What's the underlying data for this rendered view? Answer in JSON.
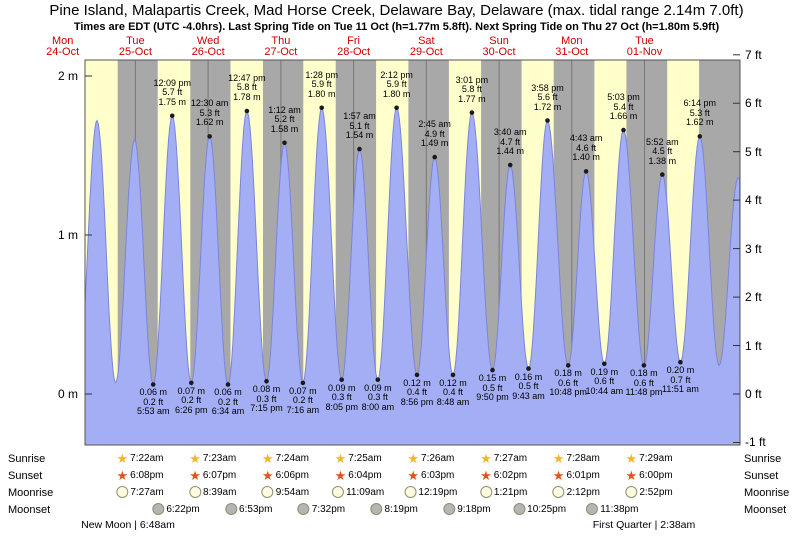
{
  "title": "Pine Island, Malapartis Creek, Mad Horse Creek, Delaware Bay, Delaware (max. tidal range 2.14m 7.0ft)",
  "subtitle": "Times are EDT (UTC -4.0hrs). Last Spring Tide on Tue 11 Oct (h=1.77m 5.8ft). Next Spring Tide on Thu 27 Oct (h=1.80m 5.9ft)",
  "days": [
    {
      "dow": "Mon",
      "date": "24-Oct"
    },
    {
      "dow": "Tue",
      "date": "25-Oct"
    },
    {
      "dow": "Wed",
      "date": "26-Oct"
    },
    {
      "dow": "Thu",
      "date": "27-Oct"
    },
    {
      "dow": "Fri",
      "date": "28-Oct"
    },
    {
      "dow": "Sat",
      "date": "29-Oct"
    },
    {
      "dow": "Sun",
      "date": "30-Oct"
    },
    {
      "dow": "Mon",
      "date": "31-Oct"
    },
    {
      "dow": "Tue",
      "date": "01-Nov"
    }
  ],
  "colors": {
    "curve_fill": "#a4aef4",
    "curve_stroke": "#7b85da",
    "daylight_band": "#ffffcc",
    "night_bg": "#a8a8a8",
    "day_label": "#cc0000",
    "sunrise_icon": "#f2b52c",
    "sunset_icon": "#e0541c",
    "moonrise_icon": "#fffbe0",
    "moonset_icon": "#b5b5b5"
  },
  "chart_data": {
    "type": "area",
    "title": "Tide height over time",
    "x_axis_note": "9 days, Mon 24-Oct through Tue 01-Nov; t = hours from Mon 24-Oct 00:00",
    "ylabel_left": "m",
    "ylabel_right": "ft",
    "ylim_m": [
      -0.32,
      2.1
    ],
    "y_ticks_left": [
      {
        "m": 2,
        "label": "2 m"
      },
      {
        "m": 1,
        "label": "1 m"
      },
      {
        "m": 0,
        "label": "0 m"
      }
    ],
    "y_ticks_right": [
      {
        "ft": 7,
        "label": "7 ft"
      },
      {
        "ft": 6,
        "label": "6 ft"
      },
      {
        "ft": 5,
        "label": "5 ft"
      },
      {
        "ft": 4,
        "label": "4 ft"
      },
      {
        "ft": 3,
        "label": "3 ft"
      },
      {
        "ft": 2,
        "label": "2 ft"
      },
      {
        "ft": 1,
        "label": "1 ft"
      },
      {
        "ft": 0,
        "label": "0 ft"
      },
      {
        "ft": -1,
        "label": "-1 ft"
      }
    ],
    "daylight_bands_hours": [
      [
        7.37,
        18.15
      ],
      [
        31.37,
        42.13
      ],
      [
        55.38,
        66.12
      ],
      [
        79.4,
        90.1
      ],
      [
        103.42,
        114.07
      ],
      [
        127.43,
        138.05
      ],
      [
        151.45,
        162.03
      ],
      [
        175.47,
        186.02
      ],
      [
        199.48,
        210.0
      ]
    ],
    "extremes": [
      {
        "t": 5.07,
        "m": 0.06,
        "type": "low",
        "annotated": false
      },
      {
        "t": 11.32,
        "m": 1.72,
        "type": "high",
        "annotated": false
      },
      {
        "t": 17.47,
        "m": 0.07,
        "type": "low",
        "annotated": false
      },
      {
        "t": 23.73,
        "m": 1.6,
        "type": "high",
        "annotated": false
      },
      {
        "t": 29.88,
        "m": 0.06,
        "m_label": "0.06 m",
        "ft": "0.2 ft",
        "time": "5:53 am",
        "type": "low",
        "annotated": true
      },
      {
        "t": 36.15,
        "m": 1.75,
        "m_label": "1.75 m",
        "ft": "5.7 ft",
        "time": "12:09 pm",
        "type": "high",
        "annotated": true
      },
      {
        "t": 42.43,
        "m": 0.07,
        "m_label": "0.07 m",
        "ft": "0.2 ft",
        "time": "6:26 pm",
        "type": "low",
        "annotated": true
      },
      {
        "t": 48.5,
        "m": 1.62,
        "m_label": "1.62 m",
        "ft": "5.3 ft",
        "time": "12:30 am",
        "type": "high",
        "annotated": true
      },
      {
        "t": 54.57,
        "m": 0.06,
        "m_label": "0.06 m",
        "ft": "0.2 ft",
        "time": "6:34 am",
        "type": "low",
        "annotated": true
      },
      {
        "t": 60.78,
        "m": 1.78,
        "m_label": "1.78 m",
        "ft": "5.8 ft",
        "time": "12:47 pm",
        "type": "high",
        "annotated": true
      },
      {
        "t": 67.25,
        "m": 0.08,
        "m_label": "0.08 m",
        "ft": "0.3 ft",
        "time": "7:15 pm",
        "type": "low",
        "annotated": true
      },
      {
        "t": 73.2,
        "m": 1.58,
        "m_label": "1.58 m",
        "ft": "5.2 ft",
        "time": "1:12 am",
        "type": "high",
        "annotated": true
      },
      {
        "t": 79.27,
        "m": 0.07,
        "m_label": "0.07 m",
        "ft": "0.2 ft",
        "time": "7:16 am",
        "type": "low",
        "annotated": true
      },
      {
        "t": 85.47,
        "m": 1.8,
        "m_label": "1.80 m",
        "ft": "5.9 ft",
        "time": "1:28 pm",
        "type": "high",
        "annotated": true
      },
      {
        "t": 92.08,
        "m": 0.09,
        "m_label": "0.09 m",
        "ft": "0.3 ft",
        "time": "8:05 pm",
        "type": "low",
        "annotated": true
      },
      {
        "t": 97.95,
        "m": 1.54,
        "m_label": "1.54 m",
        "ft": "5.1 ft",
        "time": "1:57 am",
        "type": "high",
        "annotated": true
      },
      {
        "t": 104.0,
        "m": 0.09,
        "m_label": "0.09 m",
        "ft": "0.3 ft",
        "time": "8:00 am",
        "type": "low",
        "annotated": true
      },
      {
        "t": 110.2,
        "m": 1.8,
        "m_label": "1.80 m",
        "ft": "5.9 ft",
        "time": "2:12 pm",
        "type": "high",
        "annotated": true
      },
      {
        "t": 116.93,
        "m": 0.12,
        "m_label": "0.12 m",
        "ft": "0.4 ft",
        "time": "8:56 pm",
        "type": "low",
        "annotated": true
      },
      {
        "t": 122.75,
        "m": 1.49,
        "m_label": "1.49 m",
        "ft": "4.9 ft",
        "time": "2:45 am",
        "type": "high",
        "annotated": true
      },
      {
        "t": 128.8,
        "m": 0.12,
        "m_label": "0.12 m",
        "ft": "0.4 ft",
        "time": "8:48 am",
        "type": "low",
        "annotated": true
      },
      {
        "t": 135.02,
        "m": 1.77,
        "m_label": "1.77 m",
        "ft": "5.8 ft",
        "time": "3:01 pm",
        "type": "high",
        "annotated": true
      },
      {
        "t": 141.83,
        "m": 0.15,
        "m_label": "0.15 m",
        "ft": "0.5 ft",
        "time": "9:50 pm",
        "type": "low",
        "annotated": true
      },
      {
        "t": 147.67,
        "m": 1.44,
        "m_label": "1.44 m",
        "ft": "4.7 ft",
        "time": "3:40 am",
        "type": "high",
        "annotated": true
      },
      {
        "t": 153.72,
        "m": 0.16,
        "m_label": "0.16 m",
        "ft": "0.5 ft",
        "time": "9:43 am",
        "type": "low",
        "annotated": true
      },
      {
        "t": 159.97,
        "m": 1.72,
        "m_label": "1.72 m",
        "ft": "5.6 ft",
        "time": "3:58 pm",
        "type": "high",
        "annotated": true
      },
      {
        "t": 166.8,
        "m": 0.18,
        "m_label": "0.18 m",
        "ft": "0.6 ft",
        "time": "10:48 pm",
        "type": "low",
        "annotated": true
      },
      {
        "t": 172.72,
        "m": 1.4,
        "m_label": "1.40 m",
        "ft": "4.6 ft",
        "time": "4:43 am",
        "type": "high",
        "annotated": true
      },
      {
        "t": 178.73,
        "m": 0.19,
        "m_label": "0.19 m",
        "ft": "0.6 ft",
        "time": "10:44 am",
        "type": "low",
        "annotated": true
      },
      {
        "t": 185.05,
        "m": 1.66,
        "m_label": "1.66 m",
        "ft": "5.4 ft",
        "time": "5:03 pm",
        "type": "high",
        "annotated": true
      },
      {
        "t": 191.8,
        "m": 0.18,
        "m_label": "0.18 m",
        "ft": "0.6 ft",
        "time": "11:48 pm",
        "type": "low",
        "annotated": true
      },
      {
        "t": 197.87,
        "m": 1.38,
        "m_label": "1.38 m",
        "ft": "4.5 ft",
        "time": "5:52 am",
        "type": "high",
        "annotated": true
      },
      {
        "t": 203.85,
        "m": 0.2,
        "m_label": "0.20 m",
        "ft": "0.7 ft",
        "time": "11:51 am",
        "type": "low",
        "annotated": true
      },
      {
        "t": 210.23,
        "m": 1.62,
        "m_label": "1.62 m",
        "ft": "5.3 ft",
        "time": "6:14 pm",
        "type": "high",
        "annotated": true
      },
      {
        "t": 216.6,
        "m": 0.18,
        "type": "low",
        "annotated": false
      },
      {
        "t": 222.9,
        "m": 1.36,
        "type": "high",
        "annotated": false
      }
    ]
  },
  "sun_moon": {
    "labels": [
      "Sunrise",
      "Sunset",
      "Moonrise",
      "Moonset"
    ],
    "sunrise": [
      "7:22am",
      "7:23am",
      "7:24am",
      "7:25am",
      "7:26am",
      "7:27am",
      "7:28am",
      "7:29am"
    ],
    "sunset": [
      "6:08pm",
      "6:07pm",
      "6:06pm",
      "6:04pm",
      "6:03pm",
      "6:02pm",
      "6:01pm",
      "6:00pm"
    ],
    "moonrise": [
      "7:27am",
      "8:39am",
      "9:54am",
      "11:09am",
      "12:19pm",
      "1:21pm",
      "2:12pm",
      "2:52pm"
    ],
    "moonset": [
      "6:22pm",
      "6:53pm",
      "7:32pm",
      "8:19pm",
      "9:18pm",
      "10:25pm",
      "11:38pm"
    ],
    "phases": [
      {
        "name": "New Moon",
        "time": "6:48am",
        "label": "New Moon | 6:48am"
      },
      {
        "name": "First Quarter",
        "time": "2:38am",
        "label": "First Quarter | 2:38am"
      }
    ]
  }
}
